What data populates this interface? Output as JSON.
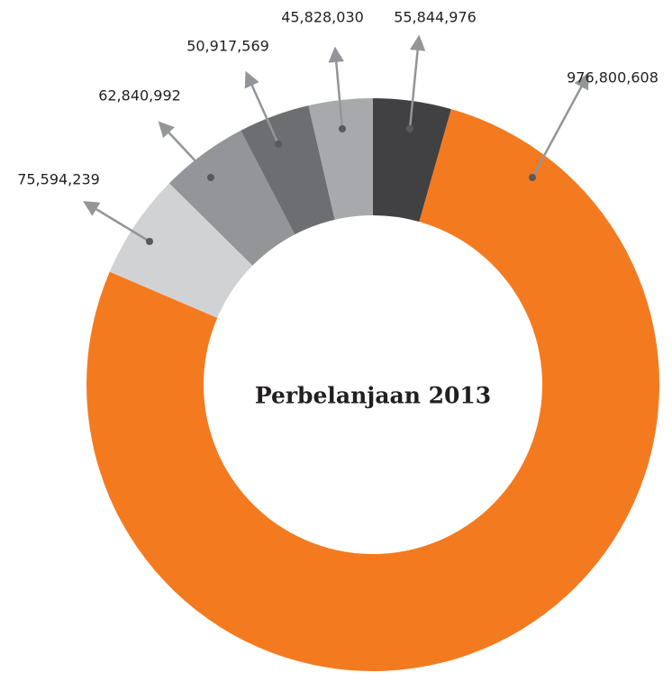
{
  "chart_data": {
    "type": "donut",
    "title": "Perbelanjaan 2013",
    "categories": [
      null,
      null,
      null,
      null,
      null,
      null
    ],
    "values": [
      55844976,
      976800608,
      75594239,
      62840992,
      50917569,
      45828030
    ],
    "value_labels": [
      "55,844,976",
      "976,800,608",
      "75,594,239",
      "62,840,992",
      "50,917,569",
      "45,828,030"
    ],
    "colors": [
      "#414042",
      "#f47a20",
      "#d1d2d4",
      "#939598",
      "#6d6e71",
      "#a7a9ac"
    ]
  }
}
